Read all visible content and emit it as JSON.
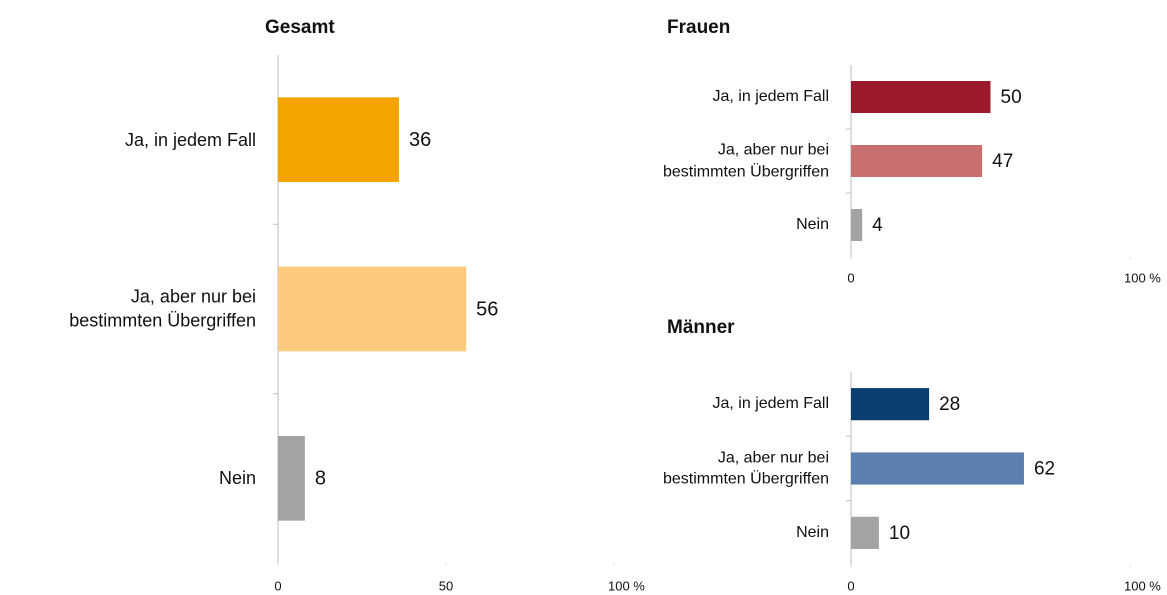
{
  "chart_data": [
    {
      "type": "bar",
      "orientation": "horizontal",
      "title": "Gesamt",
      "categories": [
        "Ja, in jedem Fall",
        "Ja, aber nur bei bestimmten Übergriffen",
        "Nein"
      ],
      "values": [
        36,
        56,
        8
      ],
      "colors": [
        "#f5a300",
        "#fcca7c",
        "#a3a3a3"
      ],
      "xlim": [
        0,
        100
      ],
      "xticks": [
        0,
        50,
        {
          "value": 100,
          "label": "100 %"
        }
      ]
    },
    {
      "type": "bar",
      "orientation": "horizontal",
      "title": "Frauen",
      "categories": [
        "Ja, in jedem Fall",
        "Ja, aber nur bei bestimmten Übergriffen",
        "Nein"
      ],
      "values": [
        50,
        47,
        4
      ],
      "colors": [
        "#9b1a2e",
        "#c8706f",
        "#a3a3a3"
      ],
      "xlim": [
        0,
        100
      ],
      "xticks": [
        0,
        {
          "value": 100,
          "label": "100 %"
        }
      ]
    },
    {
      "type": "bar",
      "orientation": "horizontal",
      "title": "Männer",
      "categories": [
        "Ja, in jedem Fall",
        "Ja, aber nur bei bestimmten Übergriffen",
        "Nein"
      ],
      "values": [
        28,
        62,
        10
      ],
      "colors": [
        "#0b3d6e",
        "#5b80ae",
        "#a3a3a3"
      ],
      "xlim": [
        0,
        100
      ],
      "xticks": [
        0,
        {
          "value": 100,
          "label": "100 %"
        }
      ]
    }
  ]
}
